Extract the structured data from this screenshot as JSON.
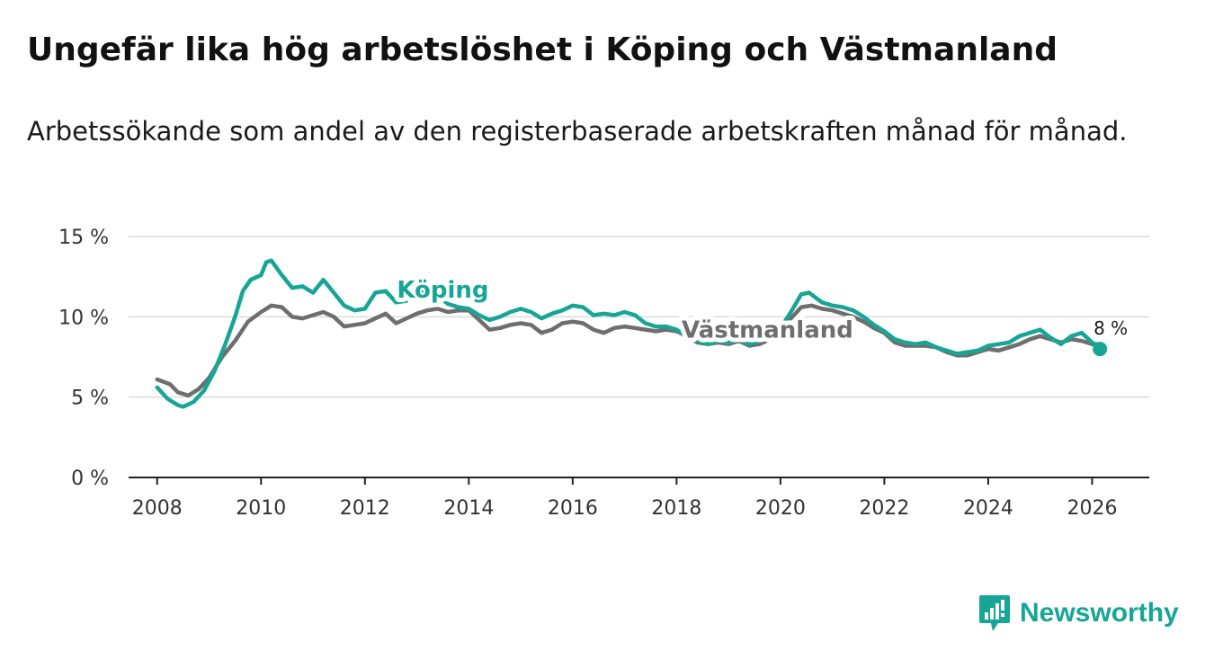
{
  "header": {
    "title": "Ungefär lika hög arbetslöshet i Köping och Västmanland",
    "subtitle": "Arbetssökande som andel av den registerbaserade arbetskraften månad för månad."
  },
  "brand": {
    "name": "Newsworthy",
    "icon": "newsworthy-logo-icon",
    "color": "#17a596"
  },
  "chart_data": {
    "type": "line",
    "title": "Ungefär lika hög arbetslöshet i Köping och Västmanland",
    "subtitle": "Arbetssökande som andel av den registerbaserade arbetskraften månad för månad.",
    "xlabel": "",
    "ylabel": "",
    "xlim": [
      2007.45,
      2027.1
    ],
    "ylim": [
      0,
      15
    ],
    "x_ticks": [
      2008,
      2010,
      2012,
      2014,
      2016,
      2018,
      2020,
      2022,
      2024,
      2026
    ],
    "x_tick_labels": [
      "2008",
      "2010",
      "2012",
      "2014",
      "2016",
      "2018",
      "2020",
      "2022",
      "2024",
      "2026"
    ],
    "y_ticks": [
      0,
      5,
      10,
      15
    ],
    "y_tick_labels": [
      "0 %",
      "5 %",
      "10 %",
      "15 %"
    ],
    "grid": true,
    "series": [
      {
        "name": "Västmanland",
        "color": "#6e6e6e",
        "label_at": [
          2019.75,
          8.7
        ],
        "points": [
          [
            2008.0,
            6.1
          ],
          [
            2008.25,
            5.8
          ],
          [
            2008.4,
            5.3
          ],
          [
            2008.6,
            5.1
          ],
          [
            2008.8,
            5.5
          ],
          [
            2009.0,
            6.2
          ],
          [
            2009.25,
            7.5
          ],
          [
            2009.5,
            8.5
          ],
          [
            2009.75,
            9.7
          ],
          [
            2010.0,
            10.3
          ],
          [
            2010.2,
            10.7
          ],
          [
            2010.4,
            10.6
          ],
          [
            2010.6,
            10.0
          ],
          [
            2010.8,
            9.9
          ],
          [
            2011.0,
            10.1
          ],
          [
            2011.2,
            10.3
          ],
          [
            2011.4,
            10.0
          ],
          [
            2011.6,
            9.4
          ],
          [
            2011.8,
            9.5
          ],
          [
            2012.0,
            9.6
          ],
          [
            2012.2,
            9.9
          ],
          [
            2012.4,
            10.2
          ],
          [
            2012.6,
            9.6
          ],
          [
            2012.8,
            9.9
          ],
          [
            2013.0,
            10.2
          ],
          [
            2013.2,
            10.4
          ],
          [
            2013.4,
            10.5
          ],
          [
            2013.6,
            10.3
          ],
          [
            2013.8,
            10.4
          ],
          [
            2014.0,
            10.4
          ],
          [
            2014.2,
            9.8
          ],
          [
            2014.4,
            9.2
          ],
          [
            2014.6,
            9.3
          ],
          [
            2014.8,
            9.5
          ],
          [
            2015.0,
            9.6
          ],
          [
            2015.2,
            9.5
          ],
          [
            2015.4,
            9.0
          ],
          [
            2015.6,
            9.2
          ],
          [
            2015.8,
            9.6
          ],
          [
            2016.0,
            9.7
          ],
          [
            2016.2,
            9.6
          ],
          [
            2016.4,
            9.2
          ],
          [
            2016.6,
            9.0
          ],
          [
            2016.8,
            9.3
          ],
          [
            2017.0,
            9.4
          ],
          [
            2017.2,
            9.3
          ],
          [
            2017.4,
            9.2
          ],
          [
            2017.6,
            9.1
          ],
          [
            2017.8,
            9.2
          ],
          [
            2018.0,
            9.1
          ],
          [
            2018.2,
            8.8
          ],
          [
            2018.4,
            8.4
          ],
          [
            2018.6,
            8.3
          ],
          [
            2018.8,
            8.4
          ],
          [
            2019.0,
            8.3
          ],
          [
            2019.2,
            8.5
          ],
          [
            2019.4,
            8.2
          ],
          [
            2019.6,
            8.3
          ],
          [
            2019.8,
            8.6
          ],
          [
            2020.0,
            9.2
          ],
          [
            2020.2,
            9.9
          ],
          [
            2020.4,
            10.6
          ],
          [
            2020.6,
            10.7
          ],
          [
            2020.8,
            10.5
          ],
          [
            2021.0,
            10.4
          ],
          [
            2021.2,
            10.2
          ],
          [
            2021.4,
            10.0
          ],
          [
            2021.6,
            9.7
          ],
          [
            2021.8,
            9.3
          ],
          [
            2022.0,
            9.0
          ],
          [
            2022.2,
            8.4
          ],
          [
            2022.4,
            8.2
          ],
          [
            2022.6,
            8.2
          ],
          [
            2022.8,
            8.2
          ],
          [
            2023.0,
            8.1
          ],
          [
            2023.2,
            7.8
          ],
          [
            2023.4,
            7.6
          ],
          [
            2023.6,
            7.6
          ],
          [
            2023.8,
            7.8
          ],
          [
            2024.0,
            8.0
          ],
          [
            2024.2,
            7.9
          ],
          [
            2024.4,
            8.1
          ],
          [
            2024.6,
            8.3
          ],
          [
            2024.8,
            8.6
          ],
          [
            2025.0,
            8.8
          ],
          [
            2025.2,
            8.6
          ],
          [
            2025.4,
            8.4
          ],
          [
            2025.6,
            8.6
          ],
          [
            2025.8,
            8.5
          ],
          [
            2026.0,
            8.3
          ],
          [
            2026.15,
            8.3
          ]
        ]
      },
      {
        "name": "Köping",
        "color": "#17a596",
        "label_at": [
          2013.5,
          11.2
        ],
        "end_label": "8 %",
        "points": [
          [
            2008.0,
            5.6
          ],
          [
            2008.2,
            4.9
          ],
          [
            2008.4,
            4.5
          ],
          [
            2008.5,
            4.4
          ],
          [
            2008.7,
            4.7
          ],
          [
            2008.9,
            5.4
          ],
          [
            2009.1,
            6.6
          ],
          [
            2009.3,
            8.2
          ],
          [
            2009.5,
            10.0
          ],
          [
            2009.65,
            11.6
          ],
          [
            2009.8,
            12.3
          ],
          [
            2010.0,
            12.6
          ],
          [
            2010.1,
            13.4
          ],
          [
            2010.2,
            13.5
          ],
          [
            2010.4,
            12.6
          ],
          [
            2010.6,
            11.8
          ],
          [
            2010.8,
            11.9
          ],
          [
            2011.0,
            11.5
          ],
          [
            2011.2,
            12.3
          ],
          [
            2011.4,
            11.5
          ],
          [
            2011.6,
            10.7
          ],
          [
            2011.8,
            10.4
          ],
          [
            2012.0,
            10.5
          ],
          [
            2012.2,
            11.5
          ],
          [
            2012.4,
            11.6
          ],
          [
            2012.6,
            10.9
          ],
          [
            2012.8,
            11.0
          ],
          [
            2013.0,
            11.5
          ],
          [
            2013.2,
            11.7
          ],
          [
            2013.4,
            11.3
          ],
          [
            2013.6,
            10.8
          ],
          [
            2013.8,
            10.6
          ],
          [
            2014.0,
            10.5
          ],
          [
            2014.2,
            10.1
          ],
          [
            2014.4,
            9.8
          ],
          [
            2014.6,
            10.0
          ],
          [
            2014.8,
            10.3
          ],
          [
            2015.0,
            10.5
          ],
          [
            2015.2,
            10.3
          ],
          [
            2015.4,
            9.9
          ],
          [
            2015.6,
            10.2
          ],
          [
            2015.8,
            10.4
          ],
          [
            2016.0,
            10.7
          ],
          [
            2016.2,
            10.6
          ],
          [
            2016.4,
            10.1
          ],
          [
            2016.6,
            10.2
          ],
          [
            2016.8,
            10.1
          ],
          [
            2017.0,
            10.3
          ],
          [
            2017.2,
            10.1
          ],
          [
            2017.4,
            9.6
          ],
          [
            2017.6,
            9.4
          ],
          [
            2017.8,
            9.4
          ],
          [
            2018.0,
            9.2
          ],
          [
            2018.2,
            8.8
          ],
          [
            2018.4,
            8.5
          ],
          [
            2018.6,
            8.3
          ],
          [
            2018.8,
            8.5
          ],
          [
            2019.0,
            8.4
          ],
          [
            2019.2,
            8.6
          ],
          [
            2019.4,
            8.3
          ],
          [
            2019.6,
            8.5
          ],
          [
            2019.8,
            8.8
          ],
          [
            2020.0,
            9.3
          ],
          [
            2020.2,
            10.3
          ],
          [
            2020.4,
            11.4
          ],
          [
            2020.55,
            11.5
          ],
          [
            2020.8,
            10.9
          ],
          [
            2021.0,
            10.7
          ],
          [
            2021.2,
            10.6
          ],
          [
            2021.4,
            10.4
          ],
          [
            2021.6,
            10.0
          ],
          [
            2021.8,
            9.5
          ],
          [
            2022.0,
            9.1
          ],
          [
            2022.2,
            8.6
          ],
          [
            2022.4,
            8.4
          ],
          [
            2022.6,
            8.3
          ],
          [
            2022.8,
            8.4
          ],
          [
            2023.0,
            8.1
          ],
          [
            2023.2,
            7.9
          ],
          [
            2023.4,
            7.7
          ],
          [
            2023.6,
            7.8
          ],
          [
            2023.8,
            7.9
          ],
          [
            2024.0,
            8.2
          ],
          [
            2024.2,
            8.3
          ],
          [
            2024.4,
            8.4
          ],
          [
            2024.6,
            8.8
          ],
          [
            2024.8,
            9.0
          ],
          [
            2025.0,
            9.2
          ],
          [
            2025.2,
            8.7
          ],
          [
            2025.4,
            8.3
          ],
          [
            2025.6,
            8.8
          ],
          [
            2025.8,
            9.0
          ],
          [
            2026.0,
            8.4
          ],
          [
            2026.15,
            8.0
          ]
        ]
      }
    ]
  }
}
